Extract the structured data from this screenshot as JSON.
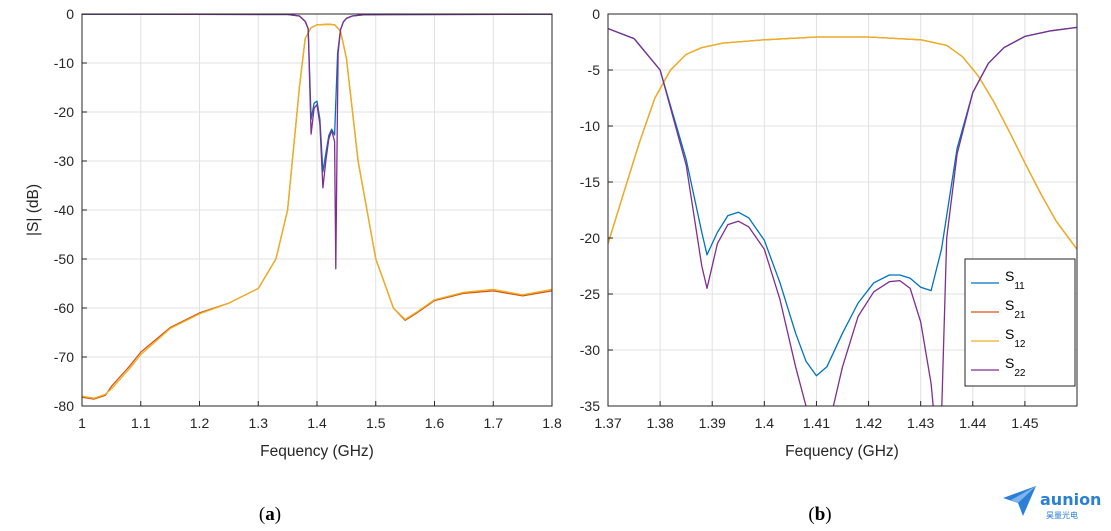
{
  "chart_data": [
    {
      "id": "a",
      "type": "line",
      "caption": "(a)",
      "xlabel": "Fequency (GHz)",
      "ylabel": "|S| (dB)",
      "xlim": [
        1,
        1.8
      ],
      "ylim": [
        -80,
        0
      ],
      "xticks": [
        "1",
        "1.1",
        "1.2",
        "1.3",
        "1.4",
        "1.5",
        "1.6",
        "1.7",
        "1.8"
      ],
      "yticks": [
        "0",
        "-10",
        "-20",
        "-30",
        "-40",
        "-50",
        "-60",
        "-70",
        "-80"
      ],
      "grid": true,
      "series": [
        {
          "key": "S11",
          "color": "#0072BD",
          "x": [
            1.0,
            1.35,
            1.37,
            1.38,
            1.385,
            1.39,
            1.395,
            1.4,
            1.405,
            1.41,
            1.415,
            1.42,
            1.425,
            1.43,
            1.435,
            1.44,
            1.445,
            1.45,
            1.46,
            1.48,
            1.8
          ],
          "y": [
            -0.05,
            -0.1,
            -0.4,
            -1.5,
            -3.0,
            -21.5,
            -18.2,
            -17.8,
            -21.5,
            -32.2,
            -28.5,
            -24.8,
            -23.5,
            -24.7,
            -8.0,
            -3.2,
            -1.6,
            -0.9,
            -0.4,
            -0.15,
            -0.05
          ]
        },
        {
          "key": "S21",
          "color": "#D95319",
          "x": [
            1.0,
            1.02,
            1.04,
            1.05,
            1.08,
            1.1,
            1.15,
            1.2,
            1.25,
            1.3,
            1.33,
            1.35,
            1.37,
            1.38,
            1.39,
            1.4,
            1.42,
            1.43,
            1.44,
            1.45,
            1.47,
            1.5,
            1.53,
            1.55,
            1.57,
            1.6,
            1.65,
            1.7,
            1.75,
            1.8
          ],
          "y": [
            -78.2,
            -78.6,
            -77.8,
            -76.0,
            -72.0,
            -69.0,
            -64.0,
            -61.0,
            -59.0,
            -56.0,
            -50.0,
            -40.0,
            -15.0,
            -5.0,
            -2.8,
            -2.2,
            -2.1,
            -2.2,
            -3.5,
            -9.0,
            -30.0,
            -50.0,
            -60.0,
            -62.5,
            -61.0,
            -58.5,
            -57.0,
            -56.5,
            -57.5,
            -56.5
          ]
        },
        {
          "key": "S12",
          "color": "#EDB120",
          "x": [
            1.0,
            1.02,
            1.04,
            1.05,
            1.08,
            1.1,
            1.15,
            1.2,
            1.25,
            1.3,
            1.33,
            1.35,
            1.37,
            1.38,
            1.39,
            1.4,
            1.42,
            1.43,
            1.44,
            1.45,
            1.47,
            1.5,
            1.53,
            1.55,
            1.57,
            1.6,
            1.65,
            1.7,
            1.75,
            1.8
          ],
          "y": [
            -78.0,
            -78.4,
            -77.6,
            -76.5,
            -72.5,
            -69.5,
            -64.2,
            -61.2,
            -59.0,
            -56.0,
            -50.0,
            -40.0,
            -15.0,
            -5.0,
            -2.8,
            -2.2,
            -2.1,
            -2.2,
            -3.5,
            -9.0,
            -30.0,
            -50.0,
            -60.0,
            -62.3,
            -60.8,
            -58.3,
            -56.8,
            -56.2,
            -57.3,
            -56.2
          ]
        },
        {
          "key": "S22",
          "color": "#7E2F8E",
          "x": [
            1.0,
            1.35,
            1.37,
            1.38,
            1.385,
            1.39,
            1.395,
            1.4,
            1.405,
            1.41,
            1.415,
            1.42,
            1.425,
            1.43,
            1.432,
            1.434,
            1.436,
            1.44,
            1.445,
            1.45,
            1.46,
            1.48,
            1.8
          ],
          "y": [
            -0.05,
            -0.1,
            -0.4,
            -1.5,
            -3.0,
            -24.5,
            -19.2,
            -18.5,
            -22.5,
            -35.5,
            -30.0,
            -25.5,
            -23.8,
            -26.0,
            -52.0,
            -28.0,
            -8.0,
            -3.2,
            -1.6,
            -0.9,
            -0.4,
            -0.15,
            -0.05
          ]
        }
      ]
    },
    {
      "id": "b",
      "type": "line",
      "caption": "(b)",
      "xlabel": "Fequency (GHz)",
      "ylabel": "",
      "xlim": [
        1.37,
        1.46
      ],
      "ylim": [
        -35,
        0
      ],
      "xticks": [
        "1.37",
        "1.38",
        "1.39",
        "1.4",
        "1.41",
        "1.42",
        "1.43",
        "1.44",
        "1.45"
      ],
      "yticks": [
        "0",
        "-5",
        "-10",
        "-15",
        "-20",
        "-25",
        "-30",
        "-35"
      ],
      "grid": true,
      "legend_position": "bottom-right",
      "legend": [
        {
          "base": "S",
          "sub": "11",
          "color": "#0072BD"
        },
        {
          "base": "S",
          "sub": "21",
          "color": "#D95319"
        },
        {
          "base": "S",
          "sub": "12",
          "color": "#EDB120"
        },
        {
          "base": "S",
          "sub": "22",
          "color": "#7E2F8E"
        }
      ],
      "series": [
        {
          "key": "S11",
          "color": "#0072BD",
          "x": [
            1.37,
            1.375,
            1.38,
            1.385,
            1.388,
            1.389,
            1.391,
            1.393,
            1.395,
            1.397,
            1.4,
            1.403,
            1.406,
            1.408,
            1.41,
            1.412,
            1.415,
            1.418,
            1.421,
            1.424,
            1.426,
            1.428,
            1.43,
            1.432,
            1.434,
            1.437,
            1.44,
            1.443,
            1.446,
            1.45,
            1.455,
            1.46
          ],
          "y": [
            -1.3,
            -2.2,
            -5.0,
            -13.0,
            -19.5,
            -21.5,
            -19.5,
            -18.0,
            -17.7,
            -18.2,
            -20.2,
            -24.0,
            -28.5,
            -31.0,
            -32.3,
            -31.5,
            -28.5,
            -25.8,
            -24.0,
            -23.3,
            -23.3,
            -23.6,
            -24.4,
            -24.7,
            -21.0,
            -12.0,
            -7.0,
            -4.4,
            -3.0,
            -2.0,
            -1.5,
            -1.2
          ]
        },
        {
          "key": "S21",
          "color": "#D95319",
          "x": [
            1.37,
            1.373,
            1.376,
            1.379,
            1.382,
            1.385,
            1.388,
            1.392,
            1.4,
            1.41,
            1.42,
            1.43,
            1.435,
            1.438,
            1.441,
            1.444,
            1.447,
            1.45,
            1.453,
            1.456,
            1.46
          ],
          "y": [
            -20.5,
            -16.0,
            -11.5,
            -7.5,
            -5.0,
            -3.6,
            -3.0,
            -2.6,
            -2.3,
            -2.05,
            -2.05,
            -2.3,
            -2.8,
            -3.8,
            -5.5,
            -7.8,
            -10.5,
            -13.3,
            -16.0,
            -18.5,
            -21.0
          ]
        },
        {
          "key": "S12",
          "color": "#EDB120",
          "x": [
            1.37,
            1.373,
            1.376,
            1.379,
            1.382,
            1.385,
            1.388,
            1.392,
            1.4,
            1.41,
            1.42,
            1.43,
            1.435,
            1.438,
            1.441,
            1.444,
            1.447,
            1.45,
            1.453,
            1.456,
            1.46
          ],
          "y": [
            -20.5,
            -16.0,
            -11.5,
            -7.5,
            -5.0,
            -3.6,
            -3.0,
            -2.6,
            -2.3,
            -2.05,
            -2.05,
            -2.3,
            -2.8,
            -3.8,
            -5.5,
            -7.8,
            -10.5,
            -13.3,
            -16.0,
            -18.5,
            -21.0
          ]
        },
        {
          "key": "S22",
          "color": "#7E2F8E",
          "x": [
            1.37,
            1.375,
            1.38,
            1.385,
            1.388,
            1.389,
            1.391,
            1.393,
            1.395,
            1.397,
            1.4,
            1.403,
            1.406,
            1.408,
            1.41,
            1.412,
            1.415,
            1.418,
            1.421,
            1.424,
            1.426,
            1.428,
            1.43,
            1.432,
            1.433,
            1.4335,
            1.434,
            1.435,
            1.437,
            1.44,
            1.443,
            1.446,
            1.45,
            1.455,
            1.46
          ],
          "y": [
            -1.3,
            -2.2,
            -5.0,
            -13.5,
            -22.5,
            -24.5,
            -20.5,
            -18.8,
            -18.5,
            -19.0,
            -21.0,
            -25.5,
            -31.5,
            -35.0,
            -37.0,
            -37.5,
            -31.5,
            -27.0,
            -24.8,
            -23.9,
            -23.8,
            -24.5,
            -27.5,
            -33.0,
            -38.0,
            -40.0,
            -36.0,
            -20.0,
            -12.5,
            -7.0,
            -4.4,
            -3.0,
            -2.0,
            -1.5,
            -1.2
          ]
        }
      ]
    }
  ],
  "logo": {
    "brand": "aunion",
    "subtitle": "昊量光电",
    "color": "#2b7fd6"
  }
}
